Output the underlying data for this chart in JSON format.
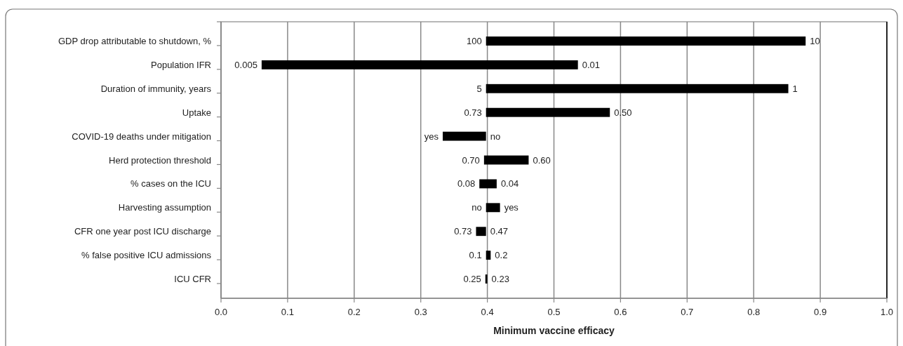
{
  "chart_data": {
    "type": "bar",
    "orientation": "horizontal",
    "xlabel": "Minimum vaccine efficacy",
    "categories": [
      "GDP drop attributable to shutdown, %",
      "Population IFR",
      "Duration of immunity, years",
      "Uptake",
      "COVID-19 deaths under mitigation",
      "Herd protection threshold",
      "% cases on the ICU",
      "Harvesting assumption",
      "CFR one year post ICU discharge",
      "% false positive ICU admissions",
      "ICU CFR"
    ],
    "base": [
      0.398,
      0.061,
      0.398,
      0.398,
      0.333,
      0.395,
      0.388,
      0.398,
      0.383,
      0.398,
      0.397
    ],
    "values": [
      0.48,
      0.475,
      0.454,
      0.186,
      0.065,
      0.067,
      0.026,
      0.021,
      0.015,
      0.007,
      0.003
    ],
    "color": "#000000",
    "xlim": [
      0,
      1
    ],
    "xticks": [
      {
        "value": 0,
        "label": "0.0"
      },
      0.1,
      0.2,
      0.3,
      0.4,
      0.5,
      0.6,
      0.7,
      0.8,
      0.9,
      {
        "value": 1,
        "label": "1.0"
      }
    ],
    "grid": "x",
    "annotations": [
      {
        "text": "100",
        "x": 0.398,
        "y": "GDP drop attributable to shutdown, %"
      },
      {
        "text": "10",
        "x": 0.878,
        "y": "GDP drop attributable to shutdown, %"
      },
      {
        "text": "0.005",
        "x": 0.061,
        "y": "Population IFR"
      },
      {
        "text": "0.01",
        "x": 0.536,
        "y": "Population IFR"
      },
      {
        "text": "5",
        "x": 0.398,
        "y": "Duration of immunity, years"
      },
      {
        "text": "1",
        "x": 0.852,
        "y": "Duration of immunity, years"
      },
      {
        "text": "0.73",
        "x": 0.398,
        "y": "Uptake"
      },
      {
        "text": "0.50",
        "x": 0.584,
        "y": "Uptake"
      },
      {
        "text": "yes",
        "x": 0.333,
        "y": "COVID-19 deaths under mitigation"
      },
      {
        "text": "no",
        "x": 0.398,
        "y": "COVID-19 deaths under mitigation"
      },
      {
        "text": "0.70",
        "x": 0.395,
        "y": "Herd protection threshold"
      },
      {
        "text": "0.60",
        "x": 0.462,
        "y": "Herd protection threshold"
      },
      {
        "text": "0.08",
        "x": 0.388,
        "y": "% cases on the ICU"
      },
      {
        "text": "0.04",
        "x": 0.414,
        "y": "% cases on the ICU"
      },
      {
        "text": "no",
        "x": 0.398,
        "y": "Harvesting assumption"
      },
      {
        "text": "yes",
        "x": 0.419,
        "y": "Harvesting assumption"
      },
      {
        "text": "0.73",
        "x": 0.383,
        "y": "CFR one year post ICU discharge"
      },
      {
        "text": "0.47",
        "x": 0.398,
        "y": "CFR one year post ICU discharge"
      },
      {
        "text": "0.1",
        "x": 0.398,
        "y": "% false positive ICU admissions"
      },
      {
        "text": "0.2",
        "x": 0.405,
        "y": "% false positive ICU admissions"
      },
      {
        "text": "0.25",
        "x": 0.397,
        "y": "ICU CFR"
      },
      {
        "text": "0.23",
        "x": 0.4,
        "y": "ICU CFR"
      }
    ]
  }
}
